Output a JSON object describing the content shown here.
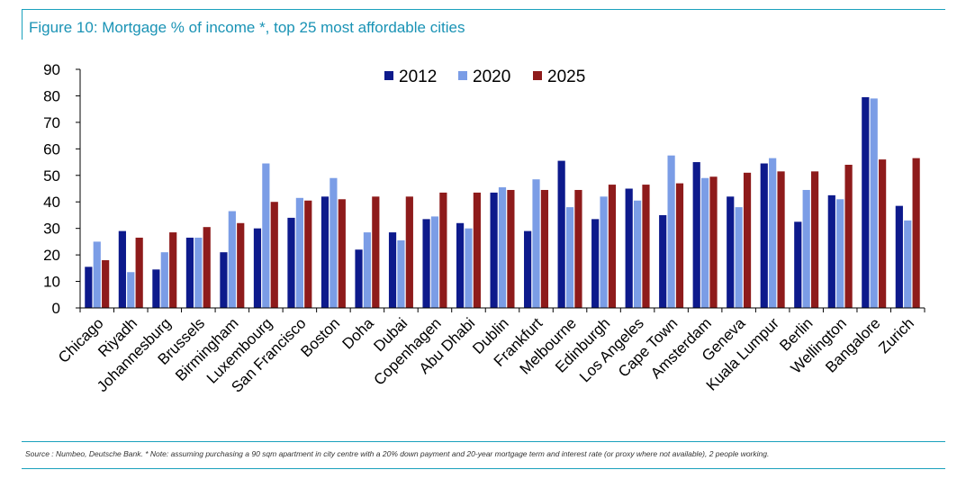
{
  "figure": {
    "title": "Figure 10: Mortgage % of income *, top 25 most affordable cities",
    "footnote": "Source : Numbeo, Deutsche Bank. * Note: assuming purchasing a 90 sqm apartment in city centre with a 20% down payment and 20-year mortgage term and interest rate (or proxy where not available), 2 people working."
  },
  "colors": {
    "accent": "#1aa1bd",
    "series_2012": "#0d1a8c",
    "series_2020": "#7b9de6",
    "series_2025": "#8e1b1b"
  },
  "chart_data": {
    "type": "bar",
    "title": "Figure 10: Mortgage % of income *, top 25 most affordable cities",
    "xlabel": "",
    "ylabel": "",
    "ylim": [
      0,
      90
    ],
    "yticks": [
      0,
      10,
      20,
      30,
      40,
      50,
      60,
      70,
      80,
      90
    ],
    "grid": false,
    "legend_position": "top-center",
    "categories": [
      "Chicago",
      "Riyadh",
      "Johannesburg",
      "Brussels",
      "Birmingham",
      "Luxembourg",
      "San Francisco",
      "Boston",
      "Doha",
      "Dubai",
      "Copenhagen",
      "Abu Dhabi",
      "Dublin",
      "Frankfurt",
      "Melbourne",
      "Edinburgh",
      "Los Angeles",
      "Cape Town",
      "Amsterdam",
      "Geneva",
      "Kuala Lumpur",
      "Berlin",
      "Wellington",
      "Bangalore",
      "Zurich"
    ],
    "series": [
      {
        "name": "2012",
        "color": "#0d1a8c",
        "values": [
          15.5,
          29,
          14.5,
          26.5,
          21,
          30,
          34,
          42,
          22,
          28.5,
          33.5,
          32,
          43.5,
          29,
          55.5,
          33.5,
          45,
          35,
          55,
          42,
          54.5,
          32.5,
          42.5,
          79.5,
          38.5
        ]
      },
      {
        "name": "2020",
        "color": "#7b9de6",
        "values": [
          25,
          13.5,
          21,
          26.5,
          36.5,
          54.5,
          41.5,
          49,
          28.5,
          25.5,
          34.5,
          30,
          45.5,
          48.5,
          38,
          42,
          40.5,
          57.5,
          49,
          38,
          56.5,
          44.5,
          41,
          79,
          33
        ]
      },
      {
        "name": "2025",
        "color": "#8e1b1b",
        "values": [
          18,
          26.5,
          28.5,
          30.5,
          32,
          40,
          40.5,
          41,
          42,
          42,
          43.5,
          43.5,
          44.5,
          44.5,
          44.5,
          46.5,
          46.5,
          47,
          49.5,
          51,
          51.5,
          51.5,
          54,
          56,
          56.5
        ]
      }
    ]
  }
}
